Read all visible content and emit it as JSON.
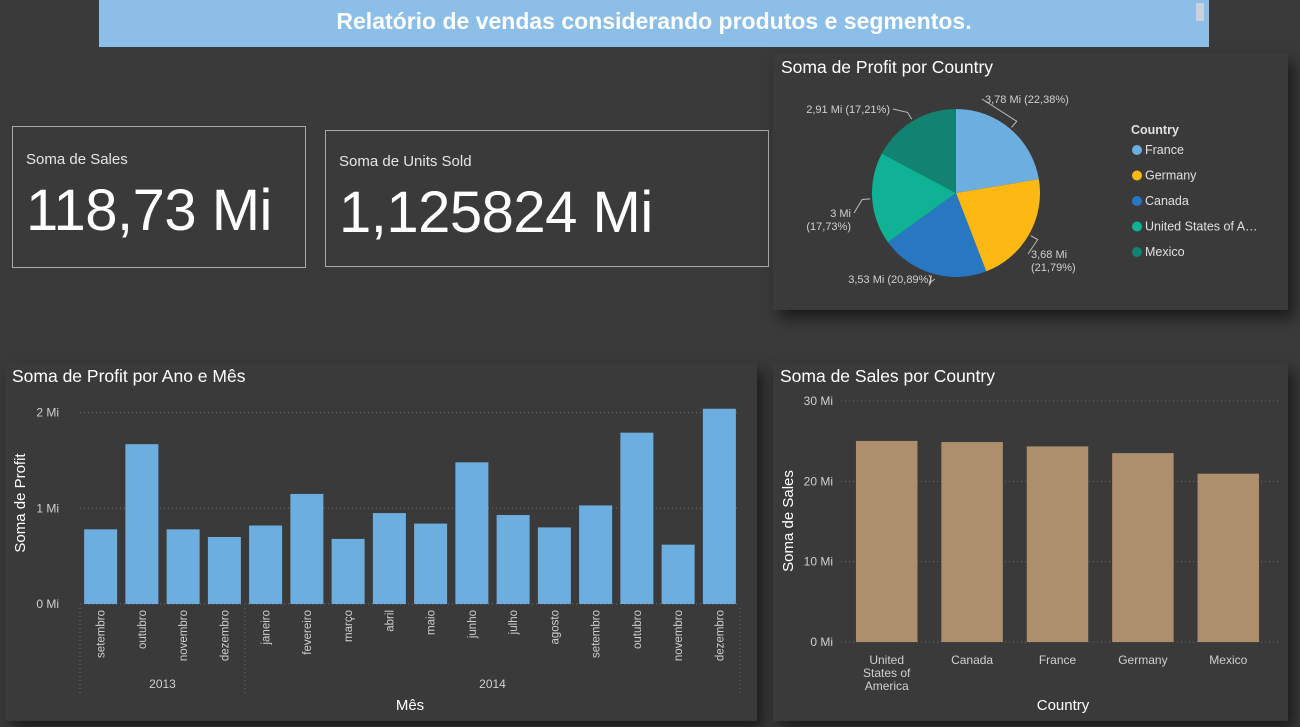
{
  "header": {
    "title": "Relatório de vendas considerando produtos e segmentos."
  },
  "cards": {
    "sales": {
      "label": "Soma de Sales",
      "value": "118,73 Mi"
    },
    "units": {
      "label": "Soma de Units Sold",
      "value": "1,125824 Mi"
    }
  },
  "colors": {
    "bar_blue": "#6daee0",
    "bar_tan": "#ae8f6d",
    "france": "#6daee0",
    "germany": "#fdb813",
    "canada": "#2777c2",
    "usa": "#0fb294",
    "mexico": "#118370"
  },
  "chart_data": [
    {
      "type": "pie",
      "title": "Soma de Profit por Country",
      "legend_title": "Country",
      "legend_position": "right",
      "slices": [
        {
          "name": "France",
          "legend_label": "France",
          "value": 3.78,
          "label": "3,78 Mi (22,38%)",
          "color": "#6daee0"
        },
        {
          "name": "Germany",
          "legend_label": "Germany",
          "value": 3.68,
          "label": "3,68 Mi (21,79%)",
          "color": "#fdb813"
        },
        {
          "name": "Canada",
          "legend_label": "Canada",
          "value": 3.53,
          "label": "3,53 Mi (20,89%)",
          "color": "#2777c2"
        },
        {
          "name": "United States of America",
          "legend_label": "United States of A…",
          "value": 3.0,
          "label": "3 Mi (17,73%)",
          "color": "#0fb294"
        },
        {
          "name": "Mexico",
          "legend_label": "Mexico",
          "value": 2.91,
          "label": "2,91 Mi (17,21%)",
          "color": "#118370"
        }
      ]
    },
    {
      "type": "bar",
      "title": "Soma de Profit por Ano e Mês",
      "xlabel": "Mês",
      "ylabel": "Soma de Profit",
      "ylim": [
        0,
        2.1
      ],
      "yticks": [
        {
          "v": 0,
          "label": "0 Mi"
        },
        {
          "v": 1,
          "label": "1 Mi"
        },
        {
          "v": 2,
          "label": "2 Mi"
        }
      ],
      "categories": [
        "setembro",
        "outubro",
        "novembro",
        "dezembro",
        "janeiro",
        "fevereiro",
        "março",
        "abril",
        "maio",
        "junho",
        "julho",
        "agosto",
        "setembro",
        "outubro",
        "novembro",
        "dezembro"
      ],
      "values": [
        0.78,
        1.67,
        0.78,
        0.7,
        0.82,
        1.15,
        0.68,
        0.95,
        0.84,
        1.48,
        0.93,
        0.8,
        1.03,
        1.79,
        0.62,
        2.04
      ],
      "groups": [
        {
          "label": "2013",
          "count": 4
        },
        {
          "label": "2014",
          "count": 12
        }
      ],
      "grid": true
    },
    {
      "type": "bar",
      "title": "Soma de Sales por Country",
      "xlabel": "Country",
      "ylabel": "Soma de Sales",
      "ylim": [
        0,
        30
      ],
      "yticks": [
        {
          "v": 0,
          "label": "0 Mi"
        },
        {
          "v": 10,
          "label": "10 Mi"
        },
        {
          "v": 20,
          "label": "20 Mi"
        },
        {
          "v": 30,
          "label": "30 Mi"
        }
      ],
      "categories": [
        [
          "United",
          "States of",
          "America"
        ],
        [
          "Canada"
        ],
        [
          "France"
        ],
        [
          "Germany"
        ],
        [
          "Mexico"
        ]
      ],
      "values": [
        25.03,
        24.89,
        24.35,
        23.51,
        20.95
      ],
      "grid": true
    }
  ]
}
